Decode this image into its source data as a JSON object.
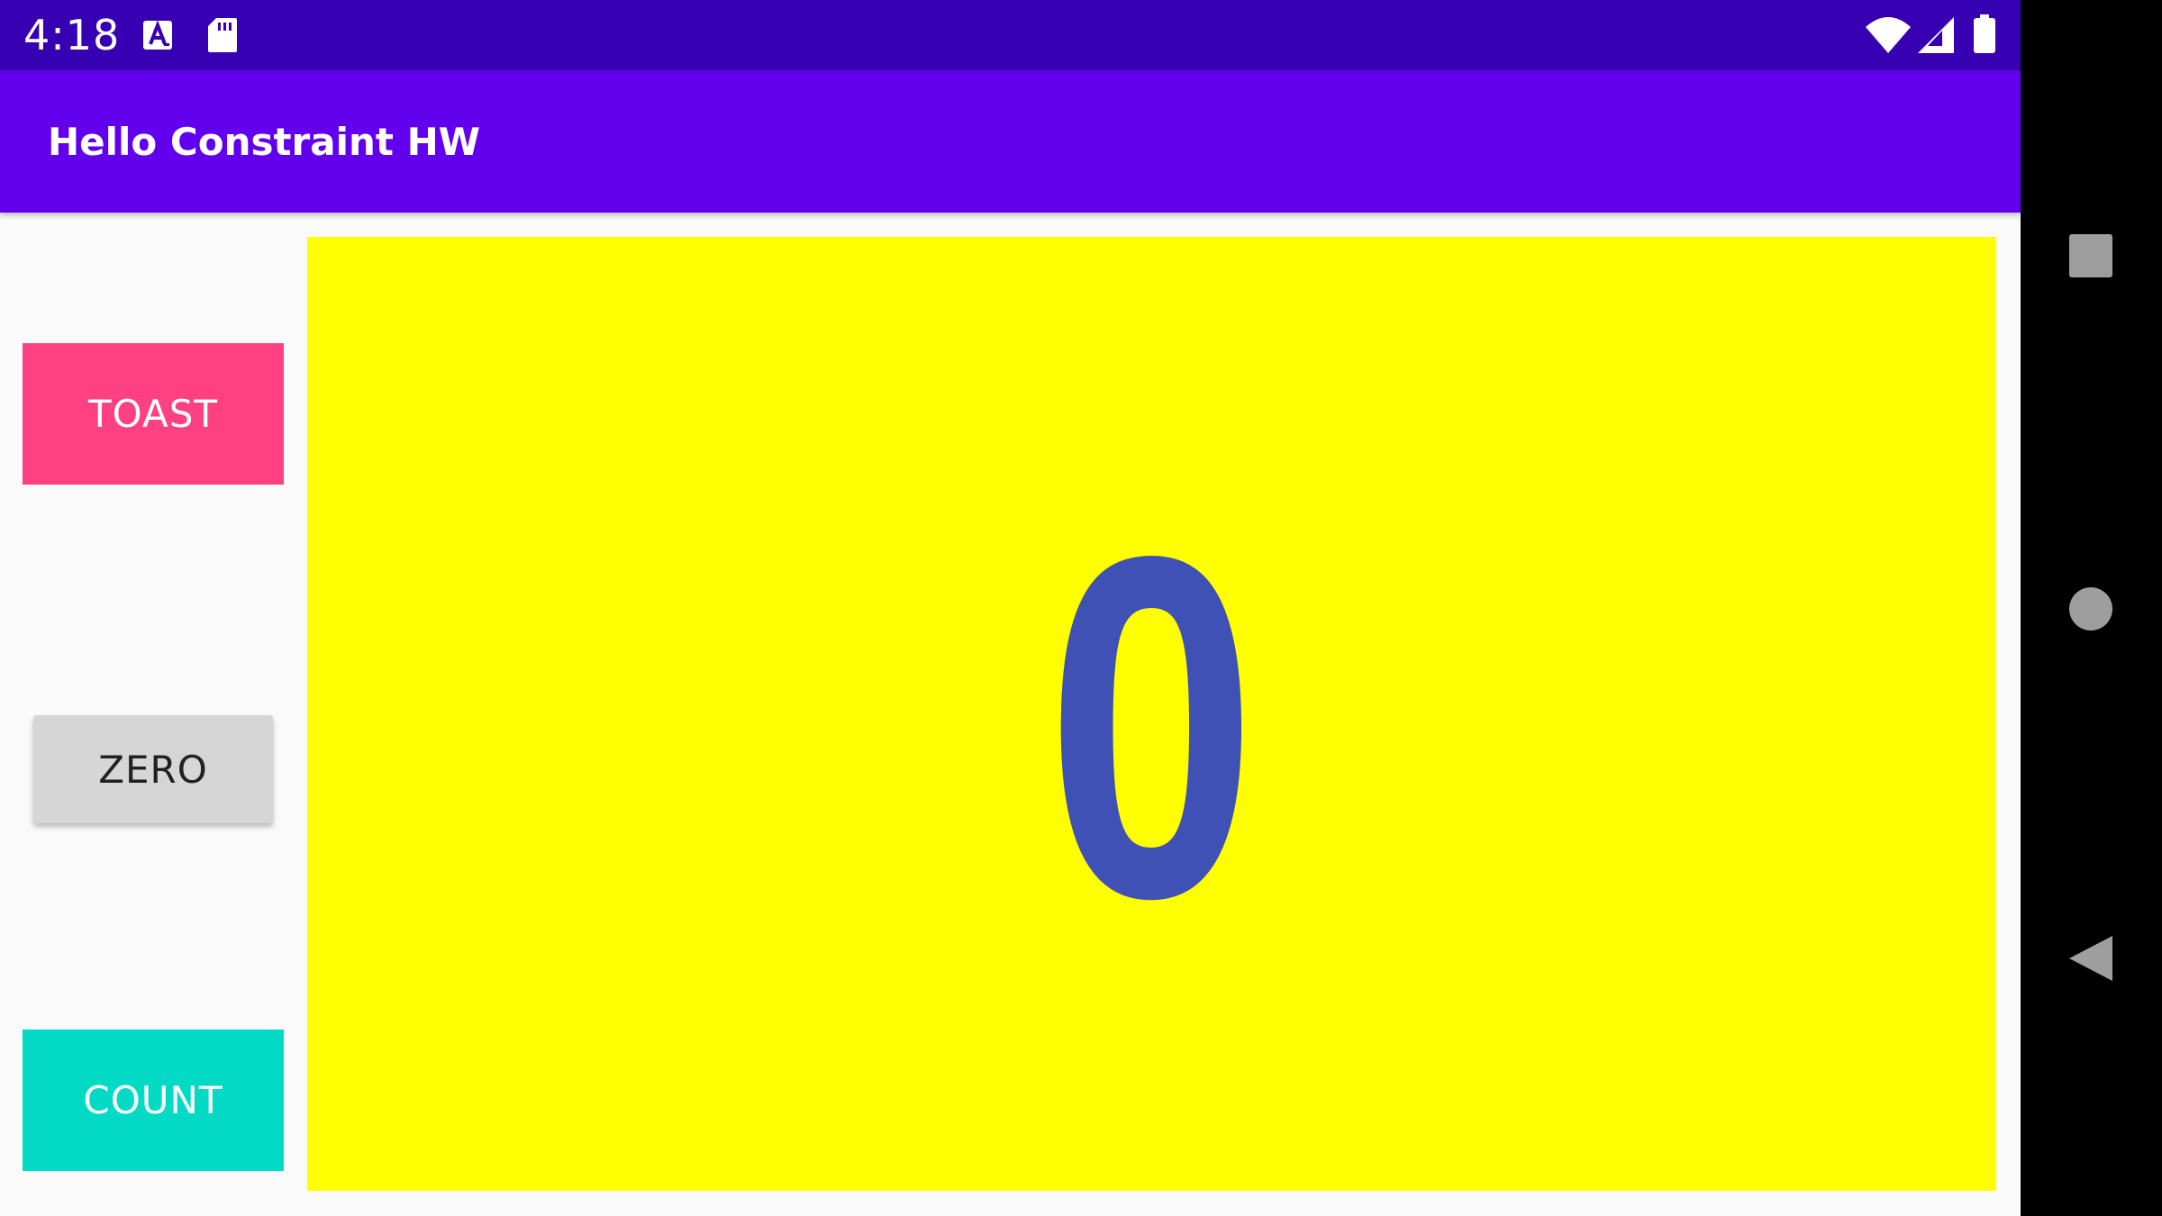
{
  "status_bar": {
    "time": "4:18",
    "icons": [
      "text-a-notification-icon",
      "sd-card-icon",
      "wifi-icon",
      "cell-signal-icon",
      "battery-icon"
    ]
  },
  "app_bar": {
    "title": "Hello Constraint HW"
  },
  "buttons": {
    "toast": "TOAST",
    "zero": "ZERO",
    "count": "COUNT"
  },
  "counter": {
    "value": "0"
  },
  "navigation": {
    "icons": [
      "recents-icon",
      "home-icon",
      "back-icon"
    ]
  },
  "colors": {
    "status_bar": "#3700B3",
    "app_bar": "#6200EE",
    "toast_button": "#FF4081",
    "zero_button": "#D6D6D6",
    "count_button": "#03DAC5",
    "count_panel": "#FFFF00",
    "count_text": "#3F51B5"
  }
}
